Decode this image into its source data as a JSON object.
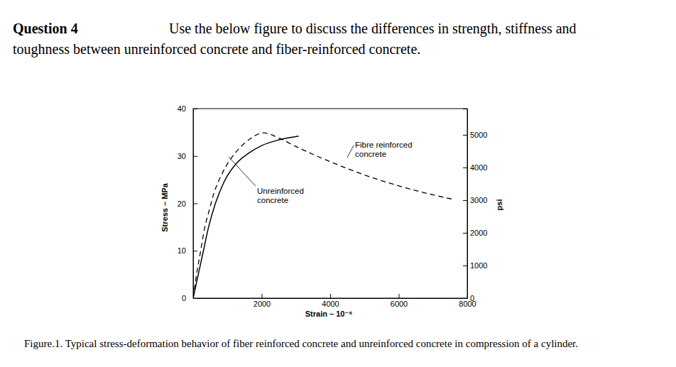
{
  "question": {
    "label": "Question 4",
    "lines": [
      "Use the below figure to discuss the differences in strength, stiffness and",
      "toughness between unreinforced concrete and fiber-reinforced concrete."
    ]
  },
  "chart_data": {
    "type": "line",
    "x_label": "Strain – 10⁻⁶",
    "y_label": "Stress – MPa",
    "y2_label": "psi",
    "xlim": [
      0,
      8000
    ],
    "xticks": [
      2000,
      4000,
      6000,
      8000
    ],
    "ylim": [
      0,
      40
    ],
    "yticks": [
      0,
      10,
      20,
      30,
      40
    ],
    "y2lim": [
      0,
      5802
    ],
    "y2ticks": [
      0,
      1000,
      2000,
      3000,
      4000,
      5000
    ],
    "grid": false,
    "series": [
      {
        "name": "Unreinforced concrete",
        "color": "#000000",
        "line_style": "solid",
        "x": [
          0,
          150,
          300,
          450,
          650,
          900,
          1270,
          1600,
          2000,
          2500,
          3080
        ],
        "values": [
          0,
          5,
          10,
          15,
          20,
          24.5,
          28.5,
          30.5,
          32.2,
          33.4,
          34.2
        ]
      },
      {
        "name": "Fibre reinforced concrete",
        "color": "#000000",
        "line_style": "dashed",
        "x": [
          0,
          100,
          220,
          340,
          450,
          600,
          860,
          1270,
          1680,
          2050,
          2500,
          3000,
          4000,
          5000,
          6000,
          7000,
          7630
        ],
        "values": [
          0,
          5,
          10,
          15,
          18,
          22,
          26.5,
          31,
          33.7,
          34.9,
          33.8,
          32,
          28.8,
          26,
          23.7,
          21.8,
          20.8
        ]
      }
    ]
  },
  "caption": "Figure.1. Typical stress-deformation behavior of fiber reinforced concrete and unreinforced concrete in compression of a cylinder."
}
